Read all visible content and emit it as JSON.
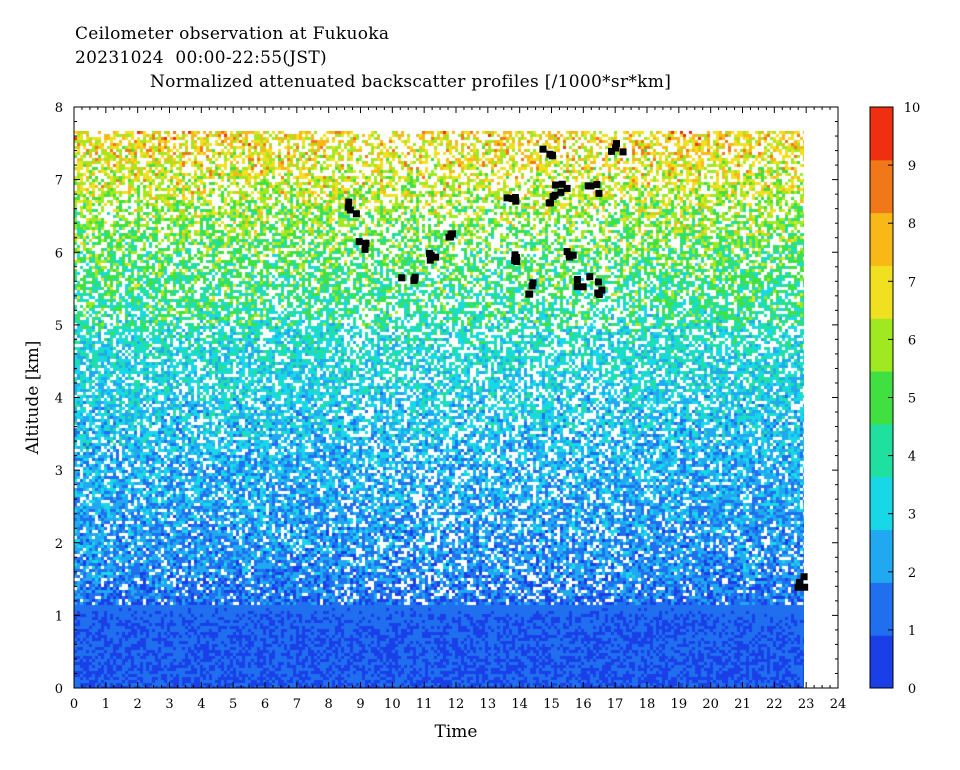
{
  "header": {
    "line1": "Ceilometer observation at Fukuoka",
    "line2": "20231024  00:00-22:55(JST)",
    "line3": "Normalized attenuated backscatter profiles [/1000*sr*km]"
  },
  "chart_data": {
    "type": "heatmap",
    "title": "Normalized attenuated backscatter profiles [/1000*sr*km]",
    "xlabel": "Time",
    "ylabel": "Altitude [km]",
    "xlim": [
      0,
      24
    ],
    "ylim": [
      0,
      8
    ],
    "data_end_time": 22.92,
    "data_top_altitude": 7.67,
    "x_ticks": [
      0,
      1,
      2,
      3,
      4,
      5,
      6,
      7,
      8,
      9,
      10,
      11,
      12,
      13,
      14,
      15,
      16,
      17,
      18,
      19,
      20,
      21,
      22,
      23,
      24
    ],
    "y_ticks": [
      0,
      1,
      2,
      3,
      4,
      5,
      6,
      7,
      8
    ],
    "colorbar": {
      "range": [
        0,
        10
      ],
      "ticks": [
        0,
        1,
        2,
        3,
        4,
        5,
        6,
        7,
        8,
        9,
        10
      ],
      "colors": [
        "#1a3fe8",
        "#1f6fef",
        "#20a8f0",
        "#18d8e8",
        "#20e0a0",
        "#40e040",
        "#a0e820",
        "#f0e020",
        "#f8b818",
        "#f07818",
        "#ee3010"
      ]
    },
    "altitude_profile": {
      "altitude_km": [
        0,
        0.5,
        1.0,
        1.3,
        1.6,
        2.0,
        2.5,
        3.0,
        3.5,
        4.0,
        4.5,
        5.0,
        5.5,
        6.0,
        6.5,
        7.0,
        7.67
      ],
      "typical_value": [
        1.0,
        1.0,
        1.1,
        1.6,
        1.9,
        2.1,
        2.3,
        2.6,
        2.9,
        3.2,
        3.6,
        4.0,
        4.5,
        5.0,
        5.7,
        6.6,
        7.5
      ]
    },
    "clouds": [
      {
        "time": 8.8,
        "altitude": 6.6
      },
      {
        "time": 9.0,
        "altitude": 6.1
      },
      {
        "time": 10.5,
        "altitude": 5.7
      },
      {
        "time": 11.2,
        "altitude": 5.9
      },
      {
        "time": 11.8,
        "altitude": 6.2
      },
      {
        "time": 13.8,
        "altitude": 6.8
      },
      {
        "time": 14.0,
        "altitude": 5.9
      },
      {
        "time": 14.5,
        "altitude": 5.5
      },
      {
        "time": 14.9,
        "altitude": 7.4
      },
      {
        "time": 15.0,
        "altitude": 6.7
      },
      {
        "time": 15.3,
        "altitude": 6.9
      },
      {
        "time": 15.5,
        "altitude": 6.0
      },
      {
        "time": 16.0,
        "altitude": 5.6
      },
      {
        "time": 16.3,
        "altitude": 6.9
      },
      {
        "time": 16.6,
        "altitude": 5.5
      },
      {
        "time": 17.1,
        "altitude": 7.45
      },
      {
        "time": 22.8,
        "altitude": 1.45
      }
    ]
  }
}
